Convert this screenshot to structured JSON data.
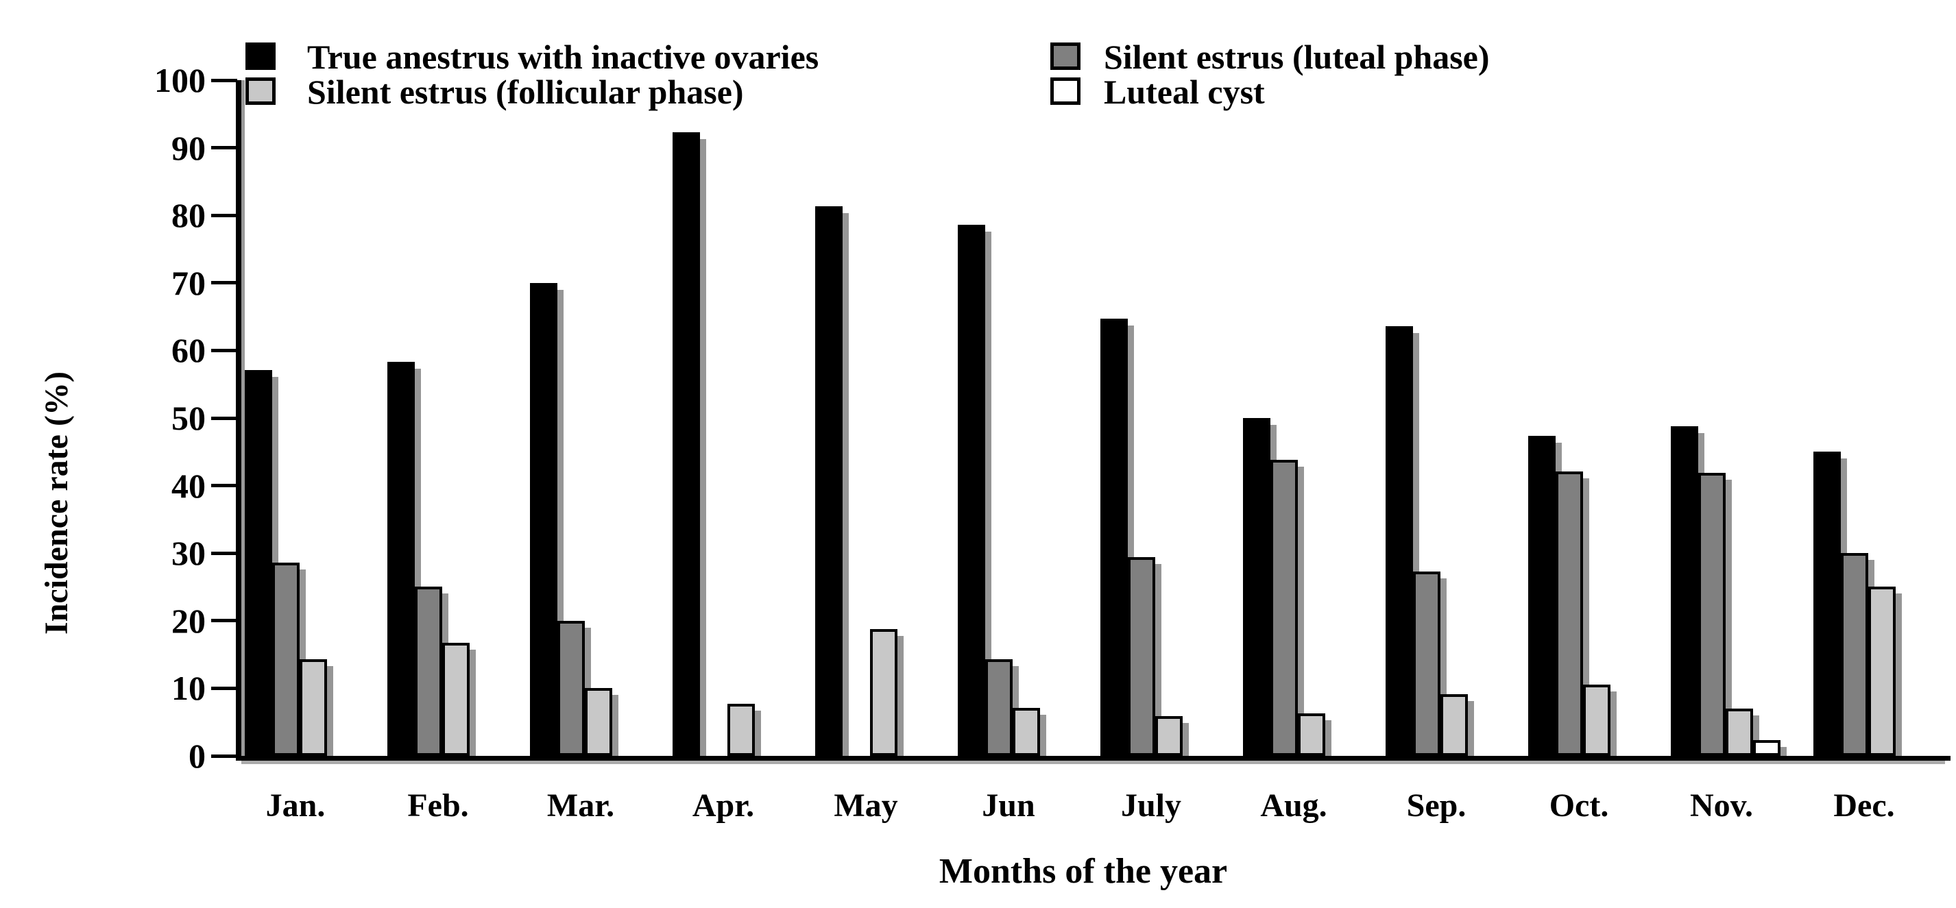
{
  "figure": {
    "y_axis_title": "Incidence rate (%)",
    "x_axis_title": "Months of the year"
  },
  "legend": [
    {
      "label": "True anestrus with inactive ovaries",
      "marker": "black-filled-square",
      "color": "#000000"
    },
    {
      "label": "Silent estrus (follicular phase)",
      "marker": "light-gray-square",
      "color": "#c8c8c8"
    },
    {
      "label": "Silent estrus (luteal phase)",
      "marker": "dark-gray-square",
      "color": "#808080"
    },
    {
      "label": "Luteal cyst",
      "marker": "white-square",
      "color": "#ffffff"
    }
  ],
  "chart_data": {
    "type": "bar",
    "title": "",
    "xlabel": "Months of the year",
    "ylabel": "Incidence rate (%)",
    "ylim": [
      0,
      100
    ],
    "yticks": [
      0,
      10,
      20,
      30,
      40,
      50,
      60,
      70,
      80,
      90,
      100
    ],
    "grid": false,
    "legend_position": "top",
    "categories": [
      "Jan.",
      "Feb.",
      "Mar.",
      "Apr.",
      "May",
      "Jun",
      "July",
      "Aug.",
      "Sep.",
      "Oct.",
      "Nov.",
      "Dec."
    ],
    "series": [
      {
        "name": "True anestrus with inactive ovaries",
        "color": "#000000",
        "values": [
          57.1,
          58.3,
          70.0,
          92.3,
          81.3,
          78.6,
          64.7,
          50.0,
          63.6,
          47.4,
          48.8,
          45.0
        ]
      },
      {
        "name": "Silent estrus (luteal phase)",
        "color": "#808080",
        "values": [
          28.6,
          25.0,
          20.0,
          0,
          0,
          14.3,
          29.4,
          43.8,
          27.3,
          42.1,
          41.9,
          30.0
        ]
      },
      {
        "name": "Silent estrus (follicular phase)",
        "color": "#c8c8c8",
        "values": [
          14.3,
          16.7,
          10.0,
          7.7,
          18.8,
          7.1,
          5.9,
          6.3,
          9.1,
          10.5,
          7.0,
          25.0
        ]
      },
      {
        "name": "Luteal cyst",
        "color": "#ffffff",
        "values": [
          0,
          0,
          0,
          0,
          0,
          0,
          0,
          0,
          0,
          0,
          2.3,
          0
        ]
      }
    ]
  }
}
